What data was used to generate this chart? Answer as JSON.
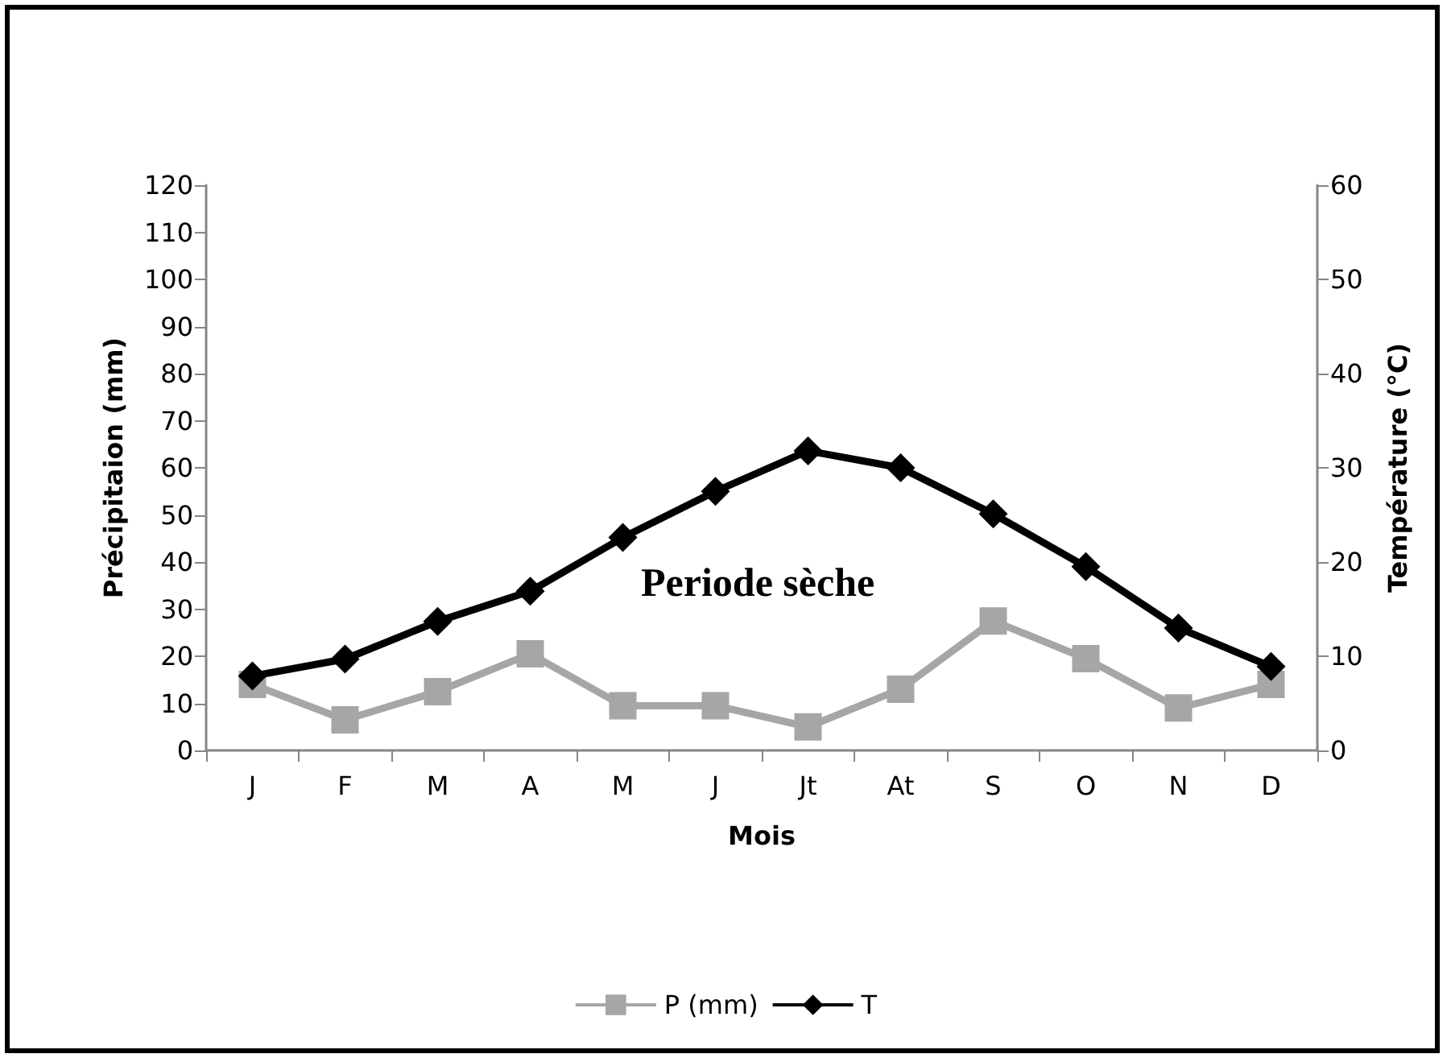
{
  "chart_data": {
    "type": "line",
    "categories": [
      "J",
      "F",
      "M",
      "A",
      "M",
      "J",
      "Jt",
      "At",
      "S",
      "O",
      "N",
      "D"
    ],
    "xlabel": "Mois",
    "ylabel": "Précipitaion (mm)",
    "y2label": "Température (°C)",
    "series": [
      {
        "name": "P (mm)",
        "color": "#a6a6a6",
        "marker": "square",
        "values": [
          14,
          6.5,
          12.5,
          20.5,
          9.5,
          9.5,
          5,
          13,
          27.5,
          19.5,
          9,
          14
        ]
      },
      {
        "name": "T",
        "color": "#000000",
        "marker": "diamond",
        "axis": "y2",
        "values": [
          7.9,
          9.7,
          13.7,
          16.9,
          22.6,
          27.5,
          31.8,
          30,
          25.1,
          19.5,
          13,
          8.9
        ]
      }
    ],
    "ylim": [
      0,
      120
    ],
    "yticks": [
      0,
      10,
      20,
      30,
      40,
      50,
      60,
      70,
      80,
      90,
      100,
      110,
      120
    ],
    "y2lim": [
      0,
      60
    ],
    "y2ticks": [
      0,
      10,
      20,
      30,
      40,
      50,
      60
    ],
    "annotations": [
      "Periode sèche"
    ],
    "legend": "bottom",
    "grid": false
  }
}
